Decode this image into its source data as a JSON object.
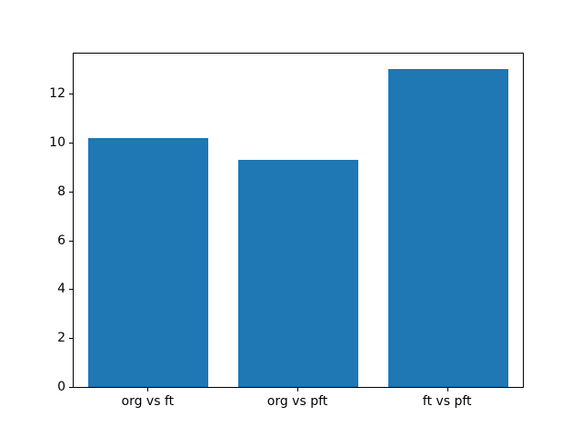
{
  "chart_data": {
    "type": "bar",
    "title": "",
    "categories": [
      "org vs ft",
      "org vs pft",
      "ft vs pft"
    ],
    "values": [
      10.2,
      9.3,
      13.0
    ],
    "xlabel": "",
    "ylabel": "",
    "ylim": [
      0,
      13.65
    ],
    "yticks": [
      0,
      2,
      4,
      6,
      8,
      10,
      12
    ],
    "bar_color": "#1f77b4",
    "bar_width_fraction": 0.8,
    "grid": false,
    "legend": null
  }
}
